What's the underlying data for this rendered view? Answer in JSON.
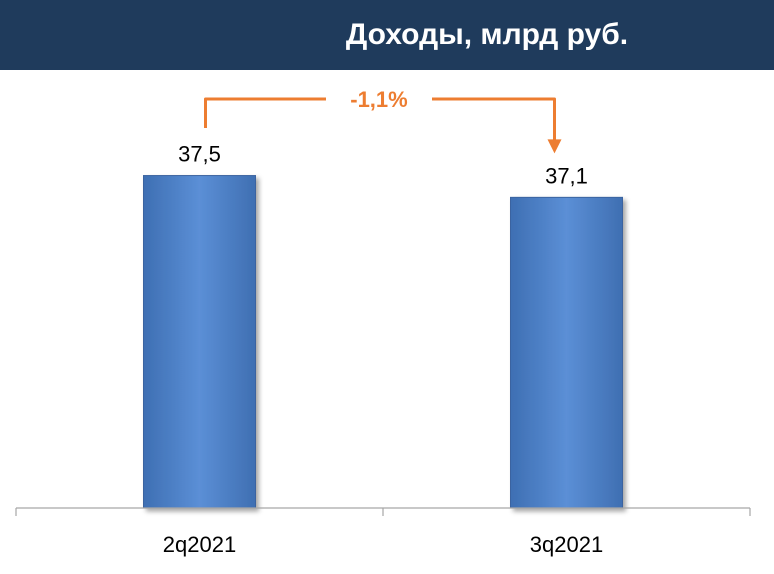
{
  "header": {
    "title": "Доходы, млрд руб."
  },
  "colors": {
    "header_bg": "#1f3b5c",
    "bar": "#4f81c7",
    "accent": "#ed7d31",
    "axis": "#a6a6a6"
  },
  "chart_data": {
    "type": "bar",
    "title": "Доходы, млрд руб.",
    "categories": [
      "2q2021",
      "3q2021"
    ],
    "values": [
      37.5,
      37.1
    ],
    "value_labels": [
      "37,5",
      "37,1"
    ],
    "xlabel": "",
    "ylabel": "",
    "grid": false,
    "annotation": {
      "text": "-1,1%",
      "from": "2q2021",
      "to": "3q2021"
    }
  }
}
